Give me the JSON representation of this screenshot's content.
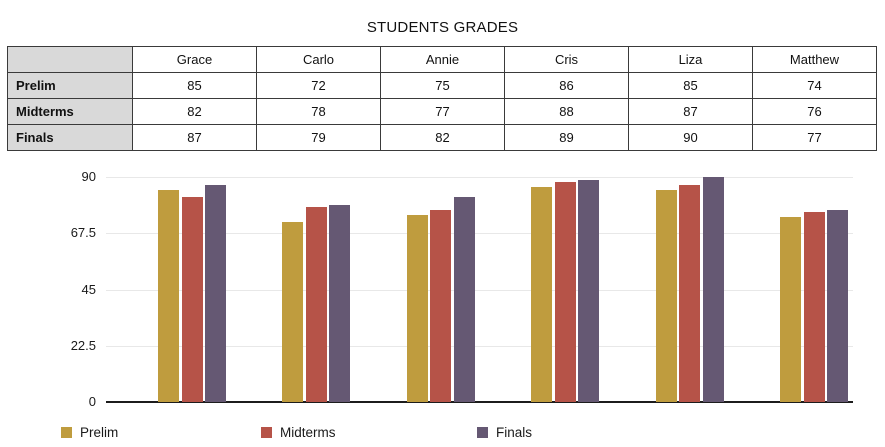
{
  "title": "STUDENTS GRADES",
  "table": {
    "corner": "",
    "columns": [
      "Grace",
      "Carlo",
      "Annie",
      "Cris",
      "Liza",
      "Matthew"
    ],
    "rows": [
      {
        "label": "Prelim",
        "values": [
          85,
          72,
          75,
          86,
          85,
          74
        ]
      },
      {
        "label": "Midterms",
        "values": [
          82,
          78,
          77,
          88,
          87,
          76
        ]
      },
      {
        "label": "Finals",
        "values": [
          87,
          79,
          82,
          89,
          90,
          77
        ]
      }
    ]
  },
  "chart_data": {
    "type": "bar",
    "title": "STUDENTS GRADES",
    "categories": [
      "Grace",
      "Carlo",
      "Annie",
      "Cris",
      "Liza",
      "Matthew"
    ],
    "series": [
      {
        "name": "Prelim",
        "values": [
          85,
          72,
          75,
          86,
          85,
          74
        ],
        "color": "#bf9c3e"
      },
      {
        "name": "Midterms",
        "values": [
          82,
          78,
          77,
          88,
          87,
          76
        ],
        "color": "#b65348"
      },
      {
        "name": "Finals",
        "values": [
          87,
          79,
          82,
          89,
          90,
          77
        ],
        "color": "#655873"
      }
    ],
    "xlabel": "",
    "ylabel": "",
    "ylim": [
      0,
      90
    ],
    "yticks": [
      0,
      22.5,
      45,
      67.5,
      90
    ],
    "ytick_labels": [
      "0",
      "22.5",
      "45",
      "67.5",
      "90"
    ],
    "grid": true,
    "legend_position": "bottom",
    "colors": {
      "gridline": "#e8e8e8",
      "axis_line": "#1c1c1c",
      "tick_text": "#1a1a1a"
    }
  }
}
